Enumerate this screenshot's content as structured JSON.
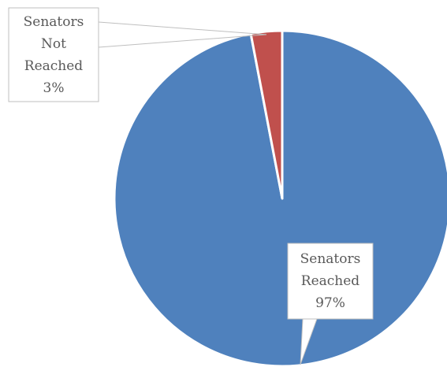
{
  "chart_data": {
    "type": "pie",
    "title": "",
    "slices": [
      {
        "name": "Senators Reached",
        "value": 97,
        "label_lines": [
          "Senators",
          "Reached"
        ],
        "percent_label": "97%",
        "color": "#4f81bd"
      },
      {
        "name": "Senators Not Reached",
        "value": 3,
        "label_lines": [
          "Senators",
          "Not",
          "Reached"
        ],
        "percent_label": "3%",
        "color": "#c0504d"
      }
    ],
    "start_angle_deg": 0,
    "direction": "clockwise",
    "slice_border_color": "#ffffff",
    "data_labels": "callouts-with-leader-lines",
    "legend": "none"
  }
}
